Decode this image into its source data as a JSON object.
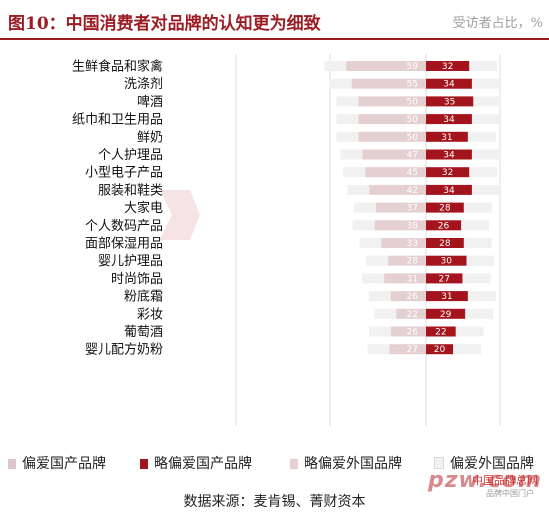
{
  "header": {
    "title": "图10：中国消费者对品牌的认知更为细致",
    "unit": "受访者占比，%"
  },
  "chart_data": {
    "type": "bar",
    "stacked": "diverging",
    "categories": [
      "生鲜食品和家禽",
      "洗涤剂",
      "啤酒",
      "纸巾和卫生用品",
      "鲜奶",
      "个人护理品",
      "小型电子产品",
      "服装和鞋类",
      "大家电",
      "个人数码产品",
      "面部保湿用品",
      "婴儿护理品",
      "时尚饰品",
      "粉底霜",
      "彩妆",
      "葡萄酒",
      "婴儿配方奶粉"
    ],
    "series": [
      {
        "name": "偏爱国产品牌",
        "color": "#dcc8cb",
        "side": "left-outer",
        "values": [
          null,
          null,
          null,
          null,
          null,
          null,
          null,
          null,
          null,
          null,
          null,
          null,
          null,
          null,
          null,
          null,
          null
        ]
      },
      {
        "name": "略偏爱国产品牌",
        "color": "#a3141c",
        "side": "left-inner",
        "values": [
          32,
          34,
          35,
          34,
          31,
          34,
          32,
          34,
          28,
          26,
          28,
          30,
          27,
          31,
          29,
          22,
          20
        ]
      },
      {
        "name": "略偏爱外国品牌",
        "color": "#e4cfd1",
        "side": "right-inner",
        "values": [
          59,
          55,
          50,
          50,
          50,
          47,
          45,
          42,
          37,
          38,
          33,
          28,
          31,
          26,
          22,
          26,
          27
        ]
      },
      {
        "name": "偏爱外国品牌",
        "color": "#f1f1f1",
        "side": "right-outer",
        "values": [
          null,
          null,
          null,
          null,
          null,
          null,
          null,
          null,
          null,
          null,
          null,
          null,
          null,
          null,
          null,
          null,
          null
        ]
      }
    ],
    "legend_position": "bottom",
    "grid": true
  },
  "legend": {
    "items": [
      {
        "label": "偏爱国产品牌",
        "color": "#dcc8cb"
      },
      {
        "label": "略偏爱国产品牌",
        "color": "#a3141c"
      },
      {
        "label": "略偏爱外国品牌",
        "color": "#e4cfd1"
      },
      {
        "label": "偏爱外国品牌",
        "color": "#f1f1f1"
      }
    ]
  },
  "source": "数据来源：麦肯锡、菁财资本",
  "watermark": {
    "logo_text": "pzw.com",
    "site_text": "中国品牌总网",
    "sub_text": "品牌中国门户"
  }
}
